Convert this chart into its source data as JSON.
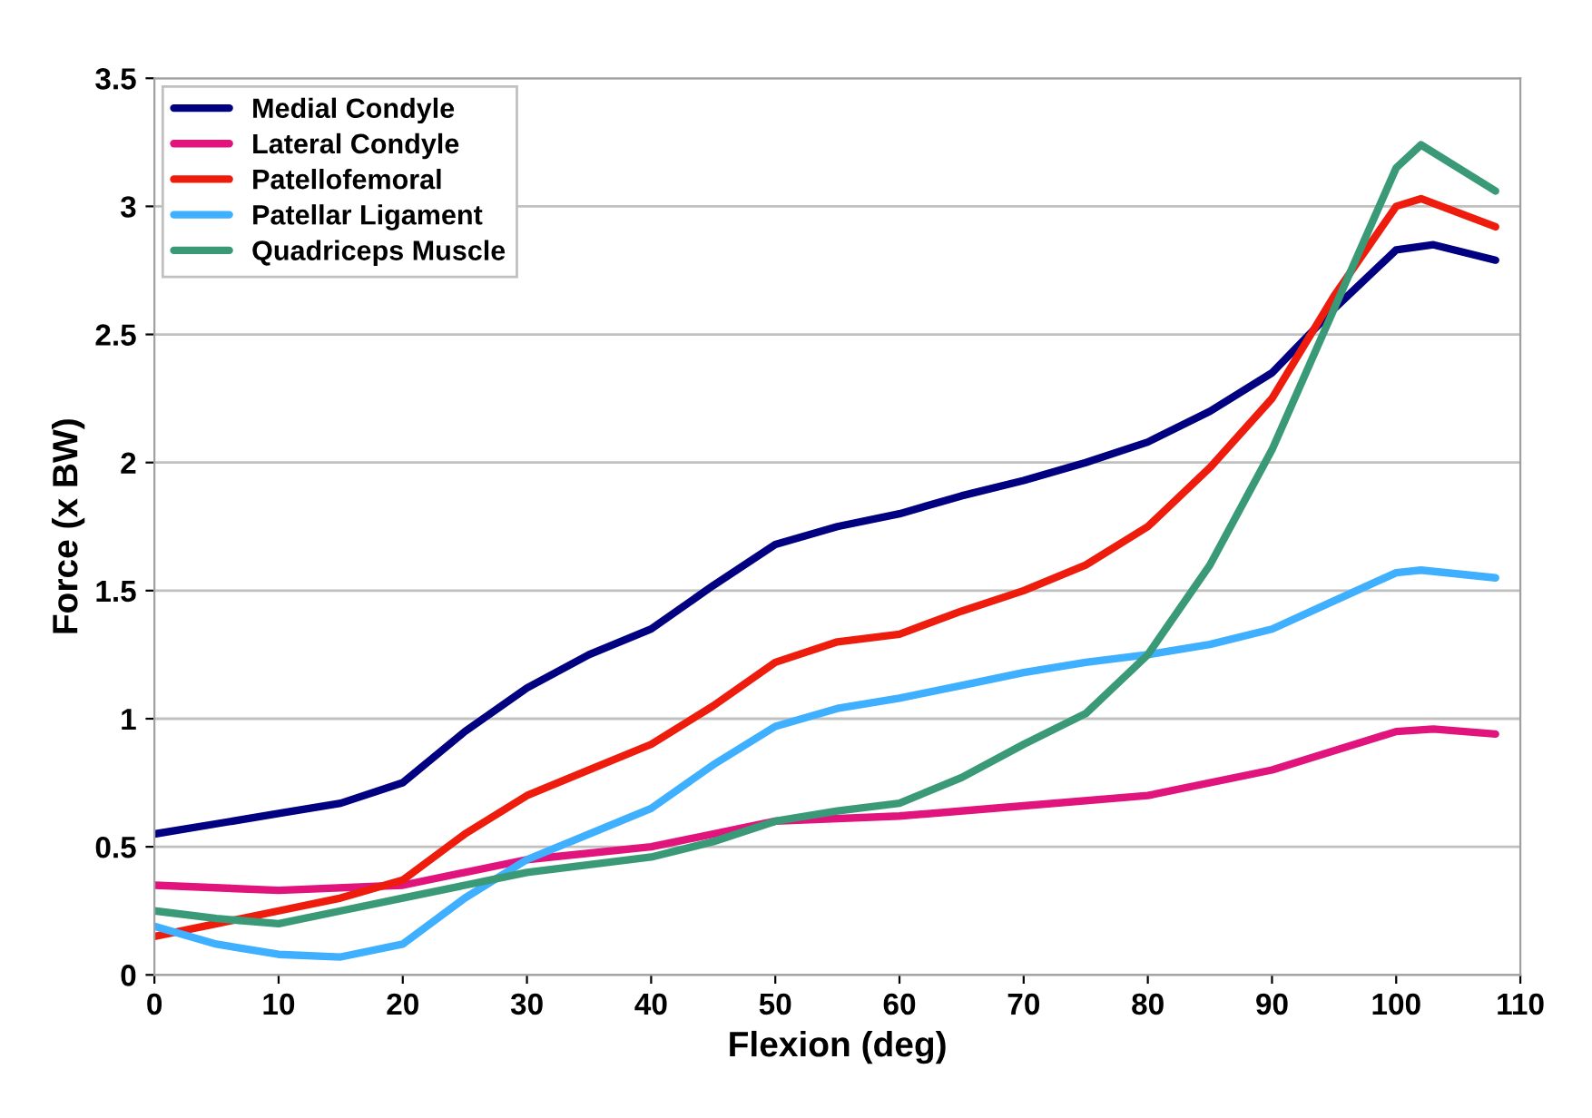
{
  "chart_data": {
    "type": "line",
    "xlabel": "Flexion (deg)",
    "ylabel": "Force (x BW)",
    "xlim": [
      0,
      110
    ],
    "xticks": [
      0,
      10,
      20,
      30,
      40,
      50,
      60,
      70,
      80,
      90,
      100,
      110
    ],
    "ylim": [
      0,
      3.5
    ],
    "yticks": [
      0,
      0.5,
      1,
      1.5,
      2,
      2.5,
      3,
      3.5
    ],
    "grid": "y",
    "legend": "top left",
    "line_style": "solid",
    "marker": "none",
    "series": [
      {
        "name": "Medial Condyle",
        "color": "#000080",
        "x": [
          0,
          5,
          10,
          15,
          20,
          25,
          30,
          35,
          40,
          45,
          50,
          55,
          60,
          65,
          70,
          75,
          80,
          85,
          90,
          95,
          100,
          103,
          108
        ],
        "values": [
          0.55,
          0.59,
          0.63,
          0.67,
          0.75,
          0.95,
          1.12,
          1.25,
          1.35,
          1.52,
          1.68,
          1.75,
          1.8,
          1.87,
          1.93,
          2.0,
          2.08,
          2.2,
          2.35,
          2.6,
          2.83,
          2.85,
          2.79
        ]
      },
      {
        "name": "Lateral Condyle",
        "color": "#e0147c",
        "x": [
          0,
          10,
          20,
          30,
          40,
          50,
          60,
          70,
          80,
          90,
          100,
          103,
          108
        ],
        "values": [
          0.35,
          0.33,
          0.35,
          0.45,
          0.5,
          0.6,
          0.62,
          0.66,
          0.7,
          0.8,
          0.95,
          0.96,
          0.94
        ]
      },
      {
        "name": "Patellofemoral",
        "color": "#ee1c0c",
        "x": [
          0,
          5,
          10,
          15,
          20,
          25,
          30,
          35,
          40,
          45,
          50,
          55,
          60,
          65,
          70,
          75,
          80,
          85,
          90,
          95,
          100,
          102,
          108
        ],
        "values": [
          0.15,
          0.2,
          0.25,
          0.3,
          0.37,
          0.55,
          0.7,
          0.8,
          0.9,
          1.05,
          1.22,
          1.3,
          1.33,
          1.42,
          1.5,
          1.6,
          1.75,
          1.98,
          2.25,
          2.65,
          3.0,
          3.03,
          2.92
        ]
      },
      {
        "name": "Patellar Ligament",
        "color": "#3fb0ff",
        "x": [
          0,
          5,
          10,
          15,
          20,
          25,
          30,
          35,
          40,
          45,
          50,
          55,
          60,
          65,
          70,
          75,
          80,
          85,
          90,
          95,
          100,
          102,
          108
        ],
        "values": [
          0.19,
          0.12,
          0.08,
          0.07,
          0.12,
          0.3,
          0.45,
          0.55,
          0.65,
          0.82,
          0.97,
          1.04,
          1.08,
          1.13,
          1.18,
          1.22,
          1.25,
          1.29,
          1.35,
          1.46,
          1.57,
          1.58,
          1.55
        ]
      },
      {
        "name": "Quadriceps Muscle",
        "color": "#3a9a78",
        "x": [
          0,
          5,
          10,
          15,
          20,
          25,
          30,
          35,
          40,
          45,
          50,
          55,
          60,
          65,
          70,
          75,
          80,
          85,
          90,
          95,
          100,
          102,
          108
        ],
        "values": [
          0.25,
          0.22,
          0.2,
          0.25,
          0.3,
          0.35,
          0.4,
          0.43,
          0.46,
          0.52,
          0.6,
          0.64,
          0.67,
          0.77,
          0.9,
          1.02,
          1.25,
          1.6,
          2.05,
          2.6,
          3.15,
          3.24,
          3.06
        ]
      }
    ]
  }
}
